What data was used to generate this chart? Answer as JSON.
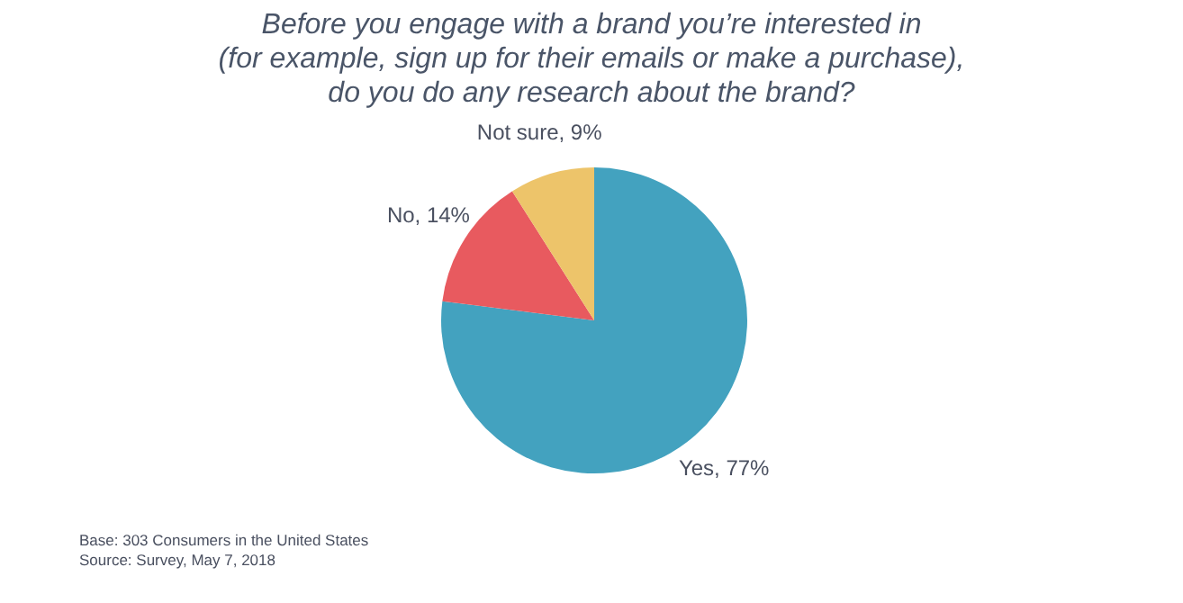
{
  "chart_data": {
    "type": "pie",
    "title": "Before you engage with a brand you’re interested in\n(for example, sign up for their emails or make a purchase),\ndo you do any research about the brand?",
    "categories": [
      "Yes",
      "No",
      "Not sure"
    ],
    "values": [
      77,
      14,
      9
    ],
    "colors": [
      "#43a2bf",
      "#e85a5f",
      "#edc46a"
    ],
    "value_labels": [
      "77%",
      "14%",
      "9%"
    ],
    "annotations": [
      "Base: 303 Consumers in the United States",
      "Source: Survey, May 7, 2018"
    ]
  }
}
